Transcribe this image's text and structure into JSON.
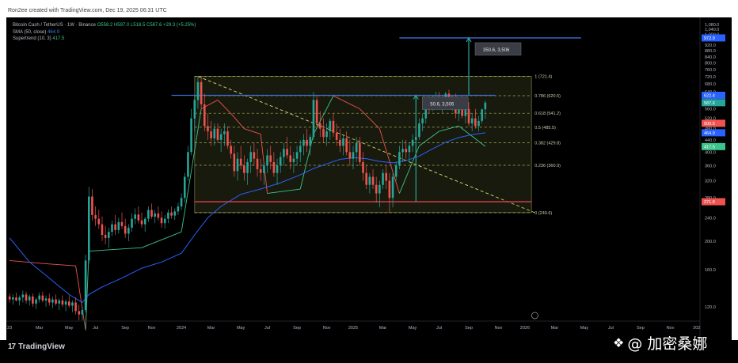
{
  "header": {
    "creator": "Ron2ee created with TradingView.com, Dec 19, 2025 06:31 UTC"
  },
  "legend": {
    "symbol": "Bitcoin Cash / TetherUS · 1W · Binance",
    "ohlc": "O558.2 H597.0 L518.5 C587.6 +29.3 (+5.25%)",
    "sma_label": "SMA (50, close)",
    "sma_value": "464.9",
    "supertrend_label": "Supertrend (10, 3)",
    "supertrend_value": "417.5"
  },
  "footer": {
    "brand": "TradingView",
    "watermark": "@ 加密桑娜"
  },
  "colors": {
    "background": "#000000",
    "up": "#26a69a",
    "down": "#ef5350",
    "sma": "#2962ff",
    "supertrend_up": "#3cc48a",
    "supertrend_down": "#ef5350",
    "fib_box": "#c8d66a",
    "blue_level": "#3b6fd6",
    "red_level": "#e04050",
    "measure": "#26a69a"
  },
  "chart_data": {
    "type": "candlestick",
    "y_scale": "log",
    "ylim": [
      110,
      1100
    ],
    "y_ticks": [
      "1,080.0",
      "1,040.0",
      "1,000.0",
      "960.0",
      "920.0",
      "880.0",
      "840.0",
      "800.0",
      "760.0",
      "720.0",
      "680.0",
      "640.0",
      "600.0",
      "560.0",
      "520.0",
      "480.0",
      "440.0",
      "400.0",
      "360.0",
      "320.0",
      "280.0",
      "240.0",
      "200.0",
      "160.0",
      "120.0"
    ],
    "y_tick_values": [
      1080,
      1040,
      1000,
      960,
      920,
      880,
      840,
      800,
      760,
      720,
      680,
      640,
      600,
      560,
      520,
      480,
      440,
      400,
      360,
      320,
      280,
      240,
      200,
      160,
      120
    ],
    "x_ticks": [
      "23",
      "Mar",
      "May",
      "Jul",
      "Sep",
      "Nov",
      "2024",
      "Mar",
      "May",
      "Jul",
      "Sep",
      "Nov",
      "2025",
      "Mar",
      "May",
      "Jul",
      "Sep",
      "Nov",
      "2026",
      "Mar",
      "May",
      "Jul",
      "Sep",
      "Nov",
      "202"
    ],
    "x_tick_weeks": [
      0,
      9,
      18,
      26,
      35,
      43,
      52,
      61,
      70,
      78,
      87,
      96,
      104,
      113,
      122,
      130,
      139,
      148,
      156,
      165,
      174,
      182,
      191,
      200,
      208
    ],
    "x_range_weeks": [
      -1,
      209
    ],
    "candles": [
      [
        0,
        130,
        133,
        124,
        127
      ],
      [
        1,
        127,
        132,
        122,
        129
      ],
      [
        2,
        129,
        134,
        125,
        126
      ],
      [
        3,
        126,
        131,
        121,
        129
      ],
      [
        4,
        129,
        136,
        124,
        132
      ],
      [
        5,
        132,
        135,
        123,
        126
      ],
      [
        6,
        126,
        132,
        121,
        130
      ],
      [
        7,
        130,
        133,
        120,
        123
      ],
      [
        8,
        123,
        129,
        118,
        127
      ],
      [
        9,
        127,
        134,
        124,
        131
      ],
      [
        10,
        131,
        135,
        124,
        126
      ],
      [
        11,
        126,
        131,
        120,
        128
      ],
      [
        12,
        128,
        133,
        121,
        124
      ],
      [
        13,
        124,
        130,
        119,
        127
      ],
      [
        14,
        127,
        132,
        121,
        123
      ],
      [
        15,
        123,
        128,
        117,
        126
      ],
      [
        16,
        126,
        131,
        120,
        122
      ],
      [
        17,
        122,
        127,
        116,
        125
      ],
      [
        18,
        125,
        131,
        119,
        121
      ],
      [
        19,
        121,
        126,
        115,
        124
      ],
      [
        20,
        124,
        129,
        113,
        116
      ],
      [
        21,
        116,
        122,
        108,
        113
      ],
      [
        22,
        113,
        120,
        108,
        117
      ],
      [
        23,
        117,
        180,
        115,
        172
      ],
      [
        24,
        172,
        305,
        168,
        283
      ],
      [
        25,
        283,
        300,
        235,
        245
      ],
      [
        26,
        245,
        262,
        225,
        238
      ],
      [
        27,
        238,
        255,
        220,
        228
      ],
      [
        28,
        228,
        242,
        200,
        210
      ],
      [
        29,
        210,
        225,
        195,
        205
      ],
      [
        30,
        205,
        222,
        190,
        215
      ],
      [
        31,
        215,
        235,
        208,
        228
      ],
      [
        32,
        228,
        245,
        210,
        218
      ],
      [
        33,
        218,
        240,
        212,
        232
      ],
      [
        34,
        232,
        250,
        220,
        225
      ],
      [
        35,
        225,
        238,
        205,
        212
      ],
      [
        36,
        212,
        228,
        200,
        222
      ],
      [
        37,
        222,
        248,
        215,
        238
      ],
      [
        38,
        238,
        258,
        228,
        246
      ],
      [
        39,
        246,
        262,
        230,
        235
      ],
      [
        40,
        235,
        250,
        222,
        228
      ],
      [
        41,
        228,
        242,
        215,
        238
      ],
      [
        42,
        238,
        262,
        232,
        255
      ],
      [
        43,
        255,
        268,
        238,
        242
      ],
      [
        44,
        242,
        255,
        230,
        248
      ],
      [
        45,
        248,
        262,
        235,
        240
      ],
      [
        46,
        240,
        252,
        222,
        230
      ],
      [
        47,
        230,
        245,
        220,
        238
      ],
      [
        48,
        238,
        256,
        230,
        250
      ],
      [
        49,
        250,
        262,
        238,
        244
      ],
      [
        50,
        244,
        258,
        236,
        252
      ],
      [
        51,
        252,
        270,
        245,
        262
      ],
      [
        52,
        262,
        290,
        255,
        280
      ],
      [
        53,
        280,
        340,
        270,
        330
      ],
      [
        54,
        330,
        420,
        320,
        400
      ],
      [
        55,
        400,
        560,
        390,
        520
      ],
      [
        56,
        520,
        620,
        470,
        600
      ],
      [
        57,
        600,
        720,
        560,
        690
      ],
      [
        58,
        690,
        720,
        560,
        580
      ],
      [
        59,
        580,
        630,
        470,
        490
      ],
      [
        60,
        490,
        540,
        440,
        470
      ],
      [
        61,
        470,
        510,
        420,
        445
      ],
      [
        62,
        445,
        500,
        420,
        480
      ],
      [
        63,
        480,
        500,
        430,
        440
      ],
      [
        64,
        440,
        480,
        400,
        460
      ],
      [
        65,
        460,
        500,
        420,
        470
      ],
      [
        66,
        470,
        490,
        410,
        420
      ],
      [
        67,
        420,
        440,
        380,
        395
      ],
      [
        68,
        395,
        420,
        330,
        345
      ],
      [
        69,
        345,
        400,
        320,
        380
      ],
      [
        70,
        380,
        420,
        350,
        360
      ],
      [
        71,
        360,
        390,
        320,
        340
      ],
      [
        72,
        340,
        380,
        310,
        370
      ],
      [
        73,
        370,
        420,
        340,
        400
      ],
      [
        74,
        400,
        430,
        360,
        380
      ],
      [
        75,
        380,
        410,
        330,
        350
      ],
      [
        76,
        350,
        380,
        320,
        340
      ],
      [
        77,
        340,
        370,
        310,
        360
      ],
      [
        78,
        360,
        410,
        340,
        390
      ],
      [
        79,
        390,
        420,
        350,
        370
      ],
      [
        80,
        370,
        400,
        330,
        340
      ],
      [
        81,
        340,
        380,
        310,
        360
      ],
      [
        82,
        360,
        400,
        340,
        385
      ],
      [
        83,
        385,
        430,
        360,
        410
      ],
      [
        84,
        410,
        450,
        380,
        390
      ],
      [
        85,
        390,
        420,
        350,
        370
      ],
      [
        86,
        370,
        400,
        340,
        380
      ],
      [
        87,
        380,
        420,
        360,
        400
      ],
      [
        88,
        400,
        440,
        370,
        420
      ],
      [
        89,
        420,
        460,
        390,
        440
      ],
      [
        90,
        440,
        480,
        400,
        420
      ],
      [
        91,
        420,
        460,
        390,
        450
      ],
      [
        92,
        450,
        640,
        440,
        600
      ],
      [
        93,
        600,
        620,
        480,
        500
      ],
      [
        94,
        500,
        550,
        450,
        480
      ],
      [
        95,
        480,
        520,
        430,
        450
      ],
      [
        96,
        450,
        500,
        420,
        470
      ],
      [
        97,
        470,
        520,
        440,
        510
      ],
      [
        98,
        510,
        540,
        450,
        465
      ],
      [
        99,
        465,
        500,
        420,
        440
      ],
      [
        100,
        440,
        480,
        400,
        420
      ],
      [
        101,
        420,
        460,
        390,
        445
      ],
      [
        102,
        445,
        470,
        390,
        400
      ],
      [
        103,
        400,
        440,
        360,
        380
      ],
      [
        104,
        380,
        420,
        350,
        400
      ],
      [
        105,
        400,
        450,
        370,
        430
      ],
      [
        106,
        430,
        450,
        360,
        370
      ],
      [
        107,
        370,
        400,
        320,
        340
      ],
      [
        108,
        340,
        360,
        300,
        310
      ],
      [
        109,
        310,
        340,
        290,
        330
      ],
      [
        110,
        330,
        350,
        300,
        310
      ],
      [
        111,
        310,
        330,
        270,
        290
      ],
      [
        112,
        290,
        320,
        260,
        310
      ],
      [
        113,
        310,
        350,
        300,
        340
      ],
      [
        114,
        340,
        360,
        300,
        320
      ],
      [
        115,
        320,
        340,
        250,
        280
      ],
      [
        116,
        280,
        340,
        260,
        330
      ],
      [
        117,
        330,
        370,
        320,
        360
      ],
      [
        118,
        360,
        420,
        350,
        400
      ],
      [
        119,
        400,
        440,
        370,
        410
      ],
      [
        120,
        410,
        440,
        380,
        400
      ],
      [
        121,
        400,
        430,
        370,
        420
      ],
      [
        122,
        420,
        460,
        400,
        440
      ],
      [
        123,
        440,
        470,
        410,
        450
      ],
      [
        124,
        450,
        520,
        440,
        500
      ],
      [
        125,
        500,
        540,
        470,
        520
      ],
      [
        126,
        520,
        600,
        500,
        580
      ],
      [
        127,
        580,
        610,
        540,
        560
      ],
      [
        128,
        560,
        620,
        550,
        600
      ],
      [
        129,
        600,
        640,
        570,
        610
      ],
      [
        130,
        610,
        640,
        560,
        570
      ],
      [
        131,
        570,
        600,
        540,
        590
      ],
      [
        132,
        590,
        640,
        580,
        630
      ],
      [
        133,
        630,
        650,
        560,
        580
      ],
      [
        134,
        580,
        620,
        550,
        600
      ],
      [
        135,
        600,
        630,
        520,
        540
      ],
      [
        136,
        540,
        580,
        510,
        560
      ],
      [
        137,
        560,
        600,
        520,
        530
      ],
      [
        138,
        530,
        580,
        500,
        560
      ],
      [
        139,
        560,
        590,
        490,
        500
      ],
      [
        140,
        500,
        540,
        470,
        520
      ],
      [
        141,
        520,
        560,
        480,
        490
      ],
      [
        142,
        490,
        530,
        470,
        510
      ],
      [
        143,
        510,
        560,
        500,
        558
      ],
      [
        144,
        558,
        597,
        518,
        588
      ]
    ],
    "sma_50": [
      [
        0,
        205
      ],
      [
        6,
        170
      ],
      [
        12,
        150
      ],
      [
        18,
        132
      ],
      [
        22,
        124
      ],
      [
        24,
        132
      ],
      [
        28,
        140
      ],
      [
        34,
        150
      ],
      [
        40,
        162
      ],
      [
        46,
        170
      ],
      [
        52,
        182
      ],
      [
        56,
        210
      ],
      [
        60,
        240
      ],
      [
        64,
        262
      ],
      [
        70,
        288
      ],
      [
        76,
        300
      ],
      [
        82,
        315
      ],
      [
        88,
        335
      ],
      [
        92,
        352
      ],
      [
        96,
        365
      ],
      [
        100,
        378
      ],
      [
        104,
        383
      ],
      [
        108,
        380
      ],
      [
        112,
        372
      ],
      [
        116,
        368
      ],
      [
        120,
        374
      ],
      [
        124,
        388
      ],
      [
        128,
        410
      ],
      [
        132,
        432
      ],
      [
        136,
        448
      ],
      [
        140,
        458
      ],
      [
        144,
        465
      ]
    ],
    "supertrend": [
      [
        0,
        172,
        "down"
      ],
      [
        10,
        168,
        "down"
      ],
      [
        20,
        165,
        "down"
      ],
      [
        23,
        100,
        "up"
      ],
      [
        24,
        185,
        "up"
      ],
      [
        40,
        190,
        "up"
      ],
      [
        52,
        215,
        "up"
      ],
      [
        55,
        345,
        "up"
      ],
      [
        58,
        560,
        "down"
      ],
      [
        63,
        600,
        "down"
      ],
      [
        67,
        540,
        "down"
      ],
      [
        71,
        480,
        "down"
      ],
      [
        76,
        460,
        "down"
      ],
      [
        78,
        290,
        "up"
      ],
      [
        88,
        300,
        "up"
      ],
      [
        92,
        460,
        "up"
      ],
      [
        98,
        620,
        "down"
      ],
      [
        106,
        560,
        "down"
      ],
      [
        112,
        480,
        "down"
      ],
      [
        118,
        290,
        "up"
      ],
      [
        124,
        420,
        "up"
      ],
      [
        130,
        470,
        "up"
      ],
      [
        136,
        490,
        "up"
      ],
      [
        144,
        418,
        "up"
      ]
    ],
    "fib_box": {
      "x_from": 56,
      "x_to": 158
    },
    "fib_levels": [
      {
        "label": "1 (721.4)",
        "value": 721.4
      },
      {
        "label": "0.786 (620.5)",
        "value": 620.5
      },
      {
        "label": "0.618 (541.2)",
        "value": 541.2
      },
      {
        "label": "0.5 (485.5)",
        "value": 485.5
      },
      {
        "label": "0.382 (429.8)",
        "value": 429.8
      },
      {
        "label": "0.236 (360.9)",
        "value": 360.9
      },
      {
        "label": "0 (249.6)",
        "value": 249.6
      }
    ],
    "horizontal_lines": [
      {
        "value": 622.4,
        "x_from": 49,
        "x_to": 147,
        "color": "blue"
      },
      {
        "value": 972.9,
        "x_from": 118,
        "x_to": 173,
        "color": "blue"
      },
      {
        "value": 271.8,
        "x_from": 56,
        "x_to": 158,
        "color": "red"
      }
    ],
    "diagonal_line": {
      "from": [
        57,
        721.4
      ],
      "to": [
        159,
        249.6
      ]
    },
    "measure_target": {
      "x": 139,
      "from": 622.4,
      "to": 972.9,
      "label": "350.6, 3,506"
    },
    "measure_inner": {
      "x": 123,
      "from": 271.8,
      "to": 622.4,
      "label": "50.6, 3,506"
    },
    "price_labels": [
      {
        "text": "972.9",
        "value": 972.9,
        "color": "#2962ff"
      },
      {
        "text": "622.4",
        "value": 622.4,
        "color": "#2962ff"
      },
      {
        "text": "587.6",
        "value": 587.6,
        "color": "#26a69a"
      },
      {
        "text": "500.5",
        "value": 500.5,
        "color": "#ef5350"
      },
      {
        "text": "464.9",
        "value": 464.9,
        "color": "#2962ff"
      },
      {
        "text": "417.5",
        "value": 417.5,
        "color": "#3cc48a"
      },
      {
        "text": "271.8",
        "value": 271.8,
        "color": "#ef5350"
      }
    ]
  }
}
